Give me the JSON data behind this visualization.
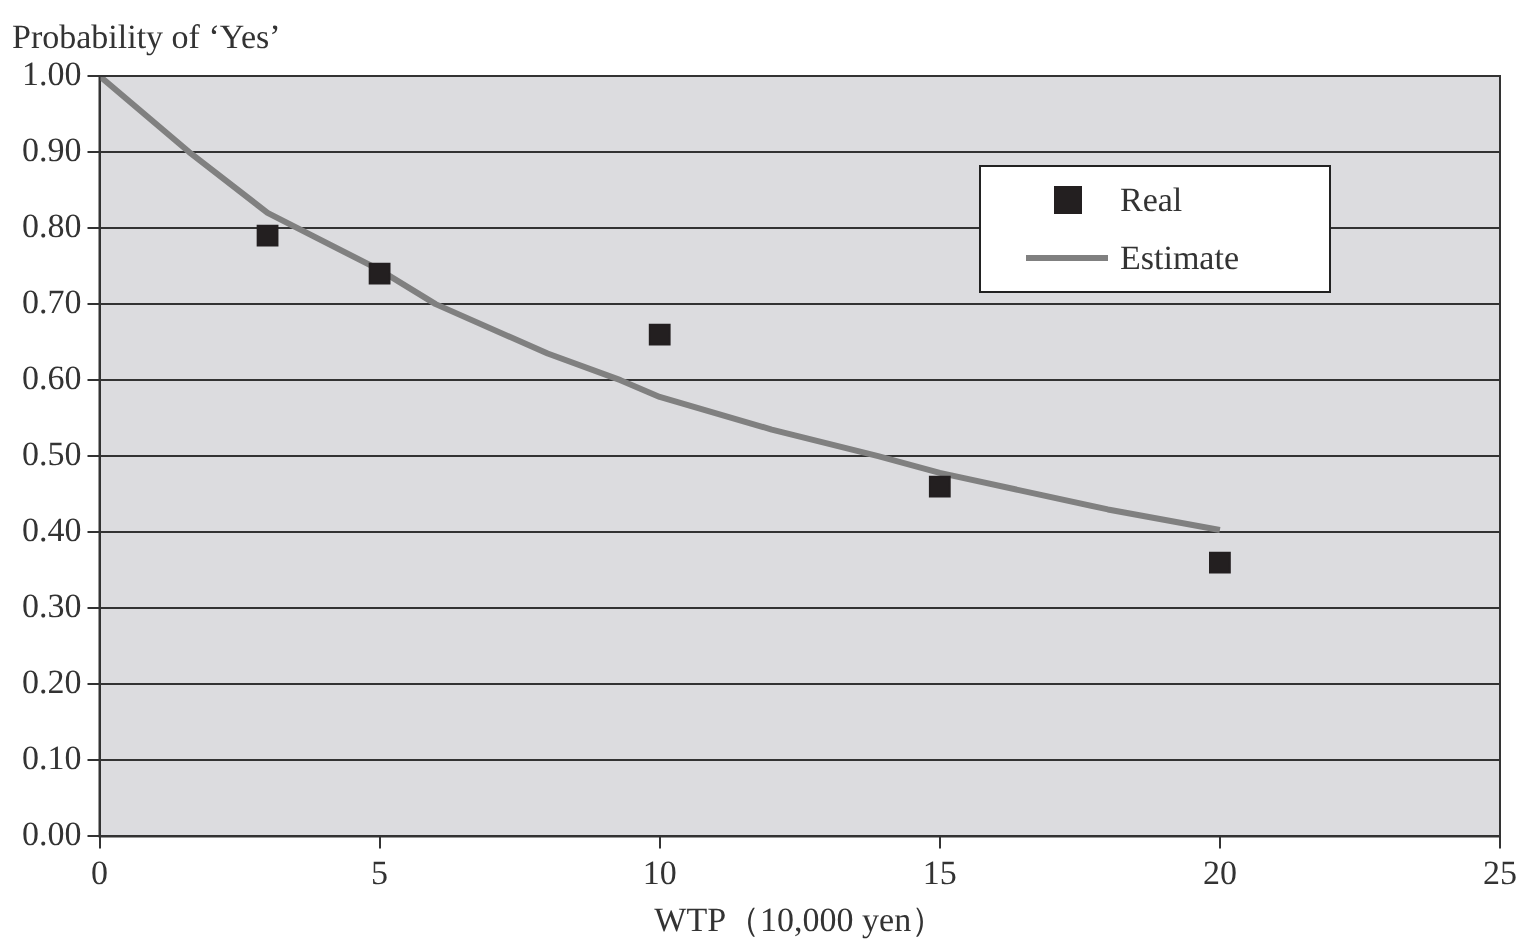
{
  "chart_data": {
    "type": "scatter",
    "xlabel": "WTP（10,000 yen）",
    "ylabel": "Probability of ‘Yes’",
    "series": [
      {
        "name": "Real",
        "color": "#231f20",
        "marker": "square",
        "x": [
          3,
          5,
          10,
          15,
          20
        ],
        "values": [
          0.79,
          0.74,
          0.66,
          0.46,
          0.36
        ]
      },
      {
        "name": "Estimate",
        "type": "line",
        "color": "#808080",
        "marker": "none",
        "line_style": "solid",
        "x": [
          0,
          1.6,
          3,
          5,
          6,
          8,
          9.3,
          10,
          12,
          13.9,
          15,
          18,
          20
        ],
        "values": [
          1.0,
          0.9,
          0.82,
          0.745,
          0.7,
          0.635,
          0.6,
          0.578,
          0.535,
          0.5,
          0.478,
          0.43,
          0.403
        ]
      }
    ],
    "xlim": [
      0,
      25
    ],
    "xticks": [
      0,
      5,
      10,
      15,
      20,
      25
    ],
    "ylim": [
      0,
      1
    ],
    "yticks": [
      {
        "value": 0,
        "label": "0.00"
      },
      {
        "value": 0.1,
        "label": "0.10"
      },
      {
        "value": 0.2,
        "label": "0.20"
      },
      {
        "value": 0.3,
        "label": "0.30"
      },
      {
        "value": 0.4,
        "label": "0.40"
      },
      {
        "value": 0.5,
        "label": "0.50"
      },
      {
        "value": 0.6,
        "label": "0.60"
      },
      {
        "value": 0.7,
        "label": "0.70"
      },
      {
        "value": 0.8,
        "label": "0.80"
      },
      {
        "value": 0.9,
        "label": "0.90"
      },
      {
        "value": 1,
        "label": "1.00"
      }
    ],
    "grid": "y",
    "legend": "top right"
  }
}
